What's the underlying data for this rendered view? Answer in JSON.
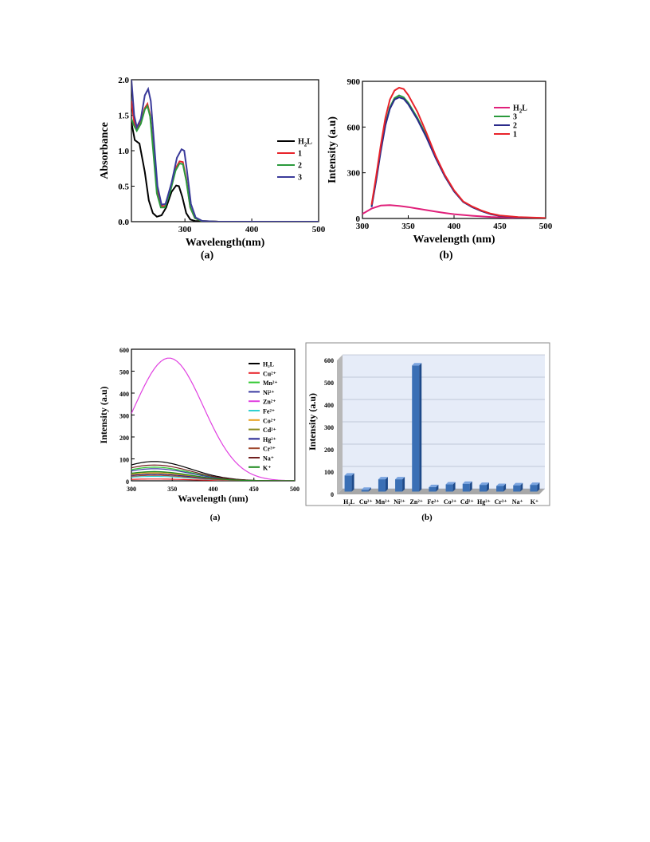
{
  "figures": [
    {
      "panel_label": "(a)",
      "chart_data": {
        "type": "line",
        "title": "",
        "xlabel": "Wavelength(nm)",
        "ylabel": "Absorbance",
        "xlim": [
          220,
          500
        ],
        "ylim": [
          0,
          2.0
        ],
        "xticks": [
          300,
          400,
          500
        ],
        "yticks": [
          0.0,
          0.5,
          1.0,
          1.5,
          2.0
        ],
        "ytick_labels": [
          "0.0",
          "0.5",
          "1.0",
          "1.5",
          "2.0"
        ],
        "grid": false,
        "legend_position": "right",
        "series": [
          {
            "name": "H2L",
            "color": "#000000",
            "points": [
              [
                220,
                1.4
              ],
              [
                225,
                1.15
              ],
              [
                232,
                1.1
              ],
              [
                240,
                0.7
              ],
              [
                246,
                0.3
              ],
              [
                252,
                0.12
              ],
              [
                258,
                0.07
              ],
              [
                265,
                0.09
              ],
              [
                272,
                0.2
              ],
              [
                280,
                0.42
              ],
              [
                287,
                0.51
              ],
              [
                291,
                0.5
              ],
              [
                296,
                0.35
              ],
              [
                302,
                0.12
              ],
              [
                308,
                0.03
              ],
              [
                315,
                0.01
              ],
              [
                350,
                0.0
              ],
              [
                500,
                0.0
              ]
            ]
          },
          {
            "name": "1",
            "color": "#e8232a",
            "points": [
              [
                220,
                1.7
              ],
              [
                224,
                1.4
              ],
              [
                228,
                1.3
              ],
              [
                234,
                1.4
              ],
              [
                240,
                1.6
              ],
              [
                244,
                1.66
              ],
              [
                248,
                1.5
              ],
              [
                253,
                1.0
              ],
              [
                258,
                0.45
              ],
              [
                264,
                0.22
              ],
              [
                270,
                0.22
              ],
              [
                278,
                0.45
              ],
              [
                286,
                0.75
              ],
              [
                292,
                0.85
              ],
              [
                297,
                0.84
              ],
              [
                302,
                0.6
              ],
              [
                308,
                0.2
              ],
              [
                315,
                0.05
              ],
              [
                325,
                0.01
              ],
              [
                350,
                0.0
              ],
              [
                500,
                0.0
              ]
            ]
          },
          {
            "name": "2",
            "color": "#2a9a3c",
            "points": [
              [
                220,
                1.45
              ],
              [
                224,
                1.35
              ],
              [
                228,
                1.28
              ],
              [
                234,
                1.38
              ],
              [
                240,
                1.58
              ],
              [
                244,
                1.63
              ],
              [
                248,
                1.48
              ],
              [
                253,
                0.95
              ],
              [
                258,
                0.4
              ],
              [
                264,
                0.2
              ],
              [
                270,
                0.2
              ],
              [
                278,
                0.42
              ],
              [
                286,
                0.72
              ],
              [
                292,
                0.82
              ],
              [
                297,
                0.81
              ],
              [
                302,
                0.58
              ],
              [
                308,
                0.2
              ],
              [
                315,
                0.05
              ],
              [
                325,
                0.01
              ],
              [
                350,
                0.0
              ],
              [
                500,
                0.0
              ]
            ]
          },
          {
            "name": "3",
            "color": "#3a3a9a",
            "points": [
              [
                220,
                2.0
              ],
              [
                224,
                1.5
              ],
              [
                228,
                1.33
              ],
              [
                234,
                1.45
              ],
              [
                240,
                1.78
              ],
              [
                245,
                1.87
              ],
              [
                249,
                1.7
              ],
              [
                254,
                1.1
              ],
              [
                259,
                0.5
              ],
              [
                265,
                0.24
              ],
              [
                271,
                0.25
              ],
              [
                280,
                0.55
              ],
              [
                288,
                0.9
              ],
              [
                295,
                1.02
              ],
              [
                299,
                1.0
              ],
              [
                303,
                0.72
              ],
              [
                309,
                0.25
              ],
              [
                316,
                0.06
              ],
              [
                326,
                0.01
              ],
              [
                350,
                0.0
              ],
              [
                500,
                0.0
              ]
            ]
          }
        ]
      }
    },
    {
      "panel_label": "(b)",
      "chart_data": {
        "type": "line",
        "title": "",
        "xlabel": "Wavelength (nm)",
        "ylabel": "Intensity (a.u)",
        "xlim": [
          300,
          500
        ],
        "ylim": [
          0,
          900
        ],
        "xticks": [
          300,
          350,
          400,
          450,
          500
        ],
        "yticks": [
          0,
          300,
          600,
          900
        ],
        "ytick_labels": [
          "0",
          "300",
          "600",
          "900"
        ],
        "grid": false,
        "legend_position": "right",
        "series": [
          {
            "name": "H2L",
            "color": "#e0207a",
            "points": [
              [
                300,
                30
              ],
              [
                310,
                65
              ],
              [
                320,
                85
              ],
              [
                330,
                88
              ],
              [
                340,
                82
              ],
              [
                350,
                75
              ],
              [
                360,
                65
              ],
              [
                370,
                55
              ],
              [
                380,
                45
              ],
              [
                390,
                36
              ],
              [
                400,
                28
              ],
              [
                420,
                18
              ],
              [
                440,
                10
              ],
              [
                460,
                6
              ],
              [
                480,
                3
              ],
              [
                500,
                2
              ]
            ]
          },
          {
            "name": "3",
            "color": "#2a9a3c",
            "points": [
              [
                310,
                80
              ],
              [
                315,
                260
              ],
              [
                320,
                450
              ],
              [
                325,
                620
              ],
              [
                330,
                730
              ],
              [
                335,
                790
              ],
              [
                340,
                808
              ],
              [
                345,
                795
              ],
              [
                350,
                760
              ],
              [
                360,
                660
              ],
              [
                370,
                540
              ],
              [
                380,
                400
              ],
              [
                390,
                280
              ],
              [
                400,
                180
              ],
              [
                410,
                110
              ],
              [
                420,
                75
              ],
              [
                430,
                50
              ],
              [
                440,
                30
              ],
              [
                450,
                18
              ],
              [
                470,
                8
              ],
              [
                500,
                2
              ]
            ]
          },
          {
            "name": "2",
            "color": "#2a2a8a",
            "points": [
              [
                310,
                75
              ],
              [
                315,
                250
              ],
              [
                320,
                440
              ],
              [
                325,
                610
              ],
              [
                330,
                720
              ],
              [
                335,
                780
              ],
              [
                340,
                795
              ],
              [
                345,
                785
              ],
              [
                350,
                750
              ],
              [
                360,
                650
              ],
              [
                370,
                530
              ],
              [
                380,
                395
              ],
              [
                390,
                275
              ],
              [
                400,
                178
              ],
              [
                410,
                108
              ],
              [
                420,
                73
              ],
              [
                430,
                48
              ],
              [
                440,
                28
              ],
              [
                450,
                17
              ],
              [
                470,
                7
              ],
              [
                500,
                2
              ]
            ]
          },
          {
            "name": "1",
            "color": "#e8232a",
            "points": [
              [
                310,
                90
              ],
              [
                315,
                280
              ],
              [
                320,
                480
              ],
              [
                325,
                660
              ],
              [
                330,
                780
              ],
              [
                335,
                840
              ],
              [
                340,
                858
              ],
              [
                345,
                850
              ],
              [
                350,
                810
              ],
              [
                360,
                700
              ],
              [
                370,
                560
              ],
              [
                380,
                410
              ],
              [
                390,
                285
              ],
              [
                400,
                185
              ],
              [
                410,
                112
              ],
              [
                420,
                78
              ],
              [
                430,
                52
              ],
              [
                440,
                32
              ],
              [
                450,
                20
              ],
              [
                470,
                9
              ],
              [
                500,
                3
              ]
            ]
          }
        ]
      }
    },
    {
      "panel_label": "(a)",
      "chart_data": {
        "type": "line",
        "title": "",
        "xlabel": "Wavelength (nm)",
        "ylabel": "Intensity (a.u)",
        "xlim": [
          300,
          500
        ],
        "ylim": [
          0,
          600
        ],
        "xticks": [
          300,
          350,
          400,
          450,
          500
        ],
        "yticks": [
          0,
          100,
          200,
          300,
          400,
          500,
          600
        ],
        "grid": false,
        "legend_position": "right",
        "series": [
          {
            "name": "H₂L",
            "color": "#000000",
            "peak": 88
          },
          {
            "name": "Cu²⁺",
            "color": "#e8232a",
            "peak": 8
          },
          {
            "name": "Mn²⁺",
            "color": "#32c832",
            "peak": 62
          },
          {
            "name": "Ni²⁺",
            "color": "#3a3aa0",
            "peak": 55
          },
          {
            "name": "Zn²⁺",
            "color": "#e040e0",
            "peak": 560
          },
          {
            "name": "Fe²⁺",
            "color": "#30d0d0",
            "peak": 20
          },
          {
            "name": "Co²⁺",
            "color": "#e8a020",
            "peak": 35
          },
          {
            "name": "Cd²⁺",
            "color": "#8a8a20",
            "peak": 40
          },
          {
            "name": "Hg²⁺",
            "color": "#202090",
            "peak": 30
          },
          {
            "name": "Cr³⁺",
            "color": "#a04a30",
            "peak": 25
          },
          {
            "name": "Na⁺",
            "color": "#702020",
            "peak": 72
          },
          {
            "name": "K⁺",
            "color": "#208a20",
            "peak": 42
          }
        ]
      }
    },
    {
      "panel_label": "(b)",
      "chart_data": {
        "type": "bar",
        "title": "",
        "xlabel": "",
        "ylabel": "Intensity (a.u)",
        "ylim": [
          0,
          600
        ],
        "yticks": [
          0,
          100,
          200,
          300,
          400,
          500,
          600
        ],
        "grid": true,
        "categories": [
          "H₂L",
          "Cu²⁺",
          "Mn²⁺",
          "Ni²⁺",
          "Zn²⁺",
          "Fe²⁺",
          "Co²⁺",
          "Cd²⁺",
          "Hg²⁺",
          "Cr³⁺",
          "Na⁺",
          "K⁺"
        ],
        "values": [
          72,
          8,
          55,
          55,
          565,
          20,
          32,
          35,
          30,
          25,
          28,
          30
        ],
        "bar_color": "#3a6fb5"
      }
    }
  ]
}
